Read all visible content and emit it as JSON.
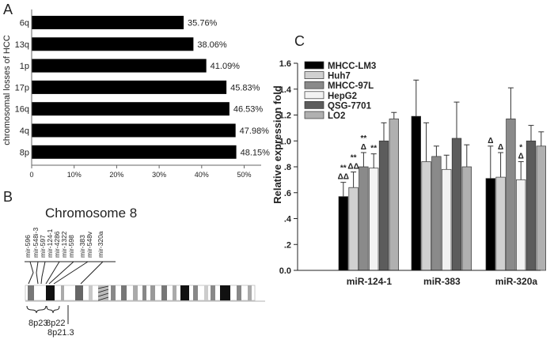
{
  "chart_data": [
    {
      "panel": "A",
      "type": "bar",
      "orientation": "horizontal",
      "ylabel": "chromosomal losses of HCC",
      "categories": [
        "6q",
        "13q",
        "1p",
        "17p",
        "16q",
        "4q",
        "8p"
      ],
      "values": [
        35.76,
        38.06,
        41.09,
        45.83,
        46.53,
        47.98,
        48.15
      ],
      "value_labels": [
        "35.76%",
        "38.06%",
        "41.09%",
        "45.83%",
        "46.53%",
        "47.98%",
        "48.15%"
      ],
      "xlim": [
        0,
        54
      ],
      "xticks": [
        0,
        10,
        20,
        30,
        40,
        50
      ],
      "xtick_labels": [
        "0",
        "10%",
        "20%",
        "30%",
        "40%",
        "50%"
      ],
      "colors": {
        "bar": "#000000"
      }
    },
    {
      "panel": "C",
      "type": "bar",
      "title": "",
      "ylabel": "Relative expression fold",
      "xlabel": "",
      "categories": [
        "miR-124-1",
        "miR-383",
        "miR-320a"
      ],
      "ylim": [
        0,
        1.6
      ],
      "yticks": [
        0,
        0.2,
        0.4,
        0.6,
        0.8,
        1.0,
        1.2,
        1.4,
        1.6
      ],
      "ytick_labels": [
        "0.0",
        ".2",
        ".4",
        ".6",
        ".8",
        "1.0",
        "1.2",
        "1.4",
        "1.6"
      ],
      "legend_position": "top-left",
      "series": [
        {
          "name": "MHCC-LM3",
          "color": "#000000",
          "values": [
            0.57,
            1.19,
            0.71
          ],
          "errors": [
            0.11,
            0.28,
            0.25
          ]
        },
        {
          "name": "Huh7",
          "color": "#d0d0d0",
          "values": [
            0.64,
            0.84,
            0.72
          ],
          "errors": [
            0.12,
            0.3,
            0.19
          ]
        },
        {
          "name": "MHCC-97L",
          "color": "#8a8a8a",
          "values": [
            0.8,
            0.88,
            1.17
          ],
          "errors": [
            0.11,
            0.08,
            0.24
          ]
        },
        {
          "name": "HepG2",
          "color": "#f2f2f2",
          "values": [
            0.79,
            0.78,
            0.7
          ],
          "errors": [
            0.11,
            0.11,
            0.14
          ]
        },
        {
          "name": "QSG-7701",
          "color": "#5c5c5c",
          "values": [
            1.0,
            1.02,
            1.0
          ],
          "errors": [
            0.14,
            0.28,
            0.12
          ]
        },
        {
          "name": "LO2",
          "color": "#b0b0b0",
          "values": [
            1.17,
            0.8,
            0.96
          ],
          "errors": [
            0.05,
            0.17,
            0.11
          ]
        }
      ],
      "annotations": [
        {
          "category": 0,
          "series": 0,
          "text": "**"
        },
        {
          "category": 0,
          "series": 0,
          "text": "ΔΔ"
        },
        {
          "category": 0,
          "series": 1,
          "text": "**"
        },
        {
          "category": 0,
          "series": 1,
          "text": "ΔΔ"
        },
        {
          "category": 0,
          "series": 2,
          "text": "**"
        },
        {
          "category": 0,
          "series": 2,
          "text": "Δ"
        },
        {
          "category": 0,
          "series": 3,
          "text": "**"
        },
        {
          "category": 2,
          "series": 0,
          "text": "Δ"
        },
        {
          "category": 2,
          "series": 1,
          "text": "Δ"
        },
        {
          "category": 2,
          "series": 3,
          "text": "*"
        },
        {
          "category": 2,
          "series": 3,
          "text": "Δ"
        }
      ]
    }
  ],
  "panels": {
    "a_letter": "A",
    "b_letter": "B",
    "c_letter": "C"
  },
  "chromosome": {
    "title": "Chromosome 8",
    "mirna_labels": [
      "mir-596",
      "mir-548i-3",
      "mir-597",
      "mir-124-1",
      "mir-4286",
      "mir-1322",
      "mir-598",
      "mir-383",
      "mir-548v",
      "mir-320a"
    ],
    "band_labels": [
      "8p23",
      "8p22",
      "8p21.3"
    ]
  }
}
